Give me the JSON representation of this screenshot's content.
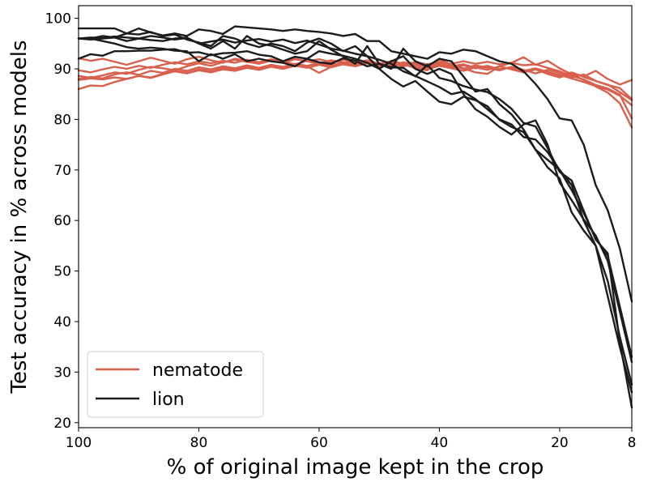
{
  "chart_data": {
    "type": "line",
    "xlabel": "% of original image kept in the crop",
    "ylabel": "Test accuracy in % across models",
    "xlim": [
      100,
      8
    ],
    "xaxis_reversed": true,
    "ylim": [
      19,
      102.5
    ],
    "x_ticks": [
      100,
      80,
      60,
      40,
      20,
      8
    ],
    "y_ticks": [
      20,
      30,
      40,
      50,
      60,
      70,
      80,
      90,
      100
    ],
    "grid": false,
    "legend_position": "lower-left",
    "legend": [
      {
        "label": "nematode",
        "color": "#d9604d"
      },
      {
        "label": "lion",
        "color": "#1c1c1c"
      }
    ],
    "x": [
      100,
      98,
      96,
      94,
      92,
      90,
      88,
      86,
      84,
      82,
      80,
      78,
      76,
      74,
      72,
      70,
      68,
      66,
      64,
      62,
      60,
      58,
      56,
      54,
      52,
      50,
      48,
      46,
      44,
      42,
      40,
      38,
      36,
      34,
      32,
      30,
      28,
      26,
      24,
      22,
      20,
      18,
      16,
      14,
      12,
      10,
      8
    ],
    "series": [
      {
        "group": "nematode",
        "color": "#d9604d",
        "values": [
          92.1,
          91.6,
          92.0,
          91.4,
          90.8,
          91.5,
          92.2,
          91.6,
          91.0,
          91.9,
          92.4,
          91.7,
          91.2,
          92.0,
          91.6,
          91.1,
          91.8,
          91.4,
          90.9,
          91.6,
          91.2,
          90.7,
          91.3,
          90.9,
          91.5,
          90.8,
          90.3,
          91.0,
          90.5,
          89.9,
          90.6,
          90.1,
          89.6,
          90.3,
          89.8,
          90.5,
          89.9,
          89.3,
          89.9,
          89.2,
          88.6,
          89.3,
          88.4,
          87.6,
          86.9,
          85.4,
          83.8
        ]
      },
      {
        "group": "nematode",
        "color": "#d9604d",
        "values": [
          88.0,
          88.4,
          88.1,
          88.9,
          89.3,
          88.8,
          89.6,
          89.2,
          90.0,
          89.6,
          90.3,
          89.9,
          90.5,
          90.1,
          90.7,
          90.2,
          90.8,
          90.4,
          91.0,
          90.6,
          91.1,
          90.7,
          91.3,
          90.8,
          91.2,
          90.6,
          91.1,
          90.5,
          91.0,
          90.4,
          90.8,
          90.2,
          90.7,
          90.1,
          90.5,
          89.9,
          90.3,
          89.6,
          90.1,
          89.4,
          88.8,
          88.1,
          87.4,
          86.6,
          85.9,
          84.7,
          82.8
        ]
      },
      {
        "group": "nematode",
        "color": "#d9604d",
        "values": [
          86.0,
          86.7,
          86.6,
          87.4,
          88.0,
          88.6,
          88.3,
          89.0,
          89.6,
          89.2,
          89.9,
          89.5,
          90.2,
          89.8,
          90.4,
          90.0,
          90.6,
          90.2,
          90.9,
          90.5,
          89.2,
          90.4,
          91.0,
          91.9,
          91.3,
          90.4,
          91.6,
          91.0,
          90.1,
          89.7,
          91.9,
          90.8,
          90.1,
          89.3,
          89.0,
          90.5,
          91.2,
          92.3,
          90.8,
          91.6,
          90.1,
          88.9,
          87.8,
          86.5,
          85.3,
          83.2,
          78.4
        ]
      },
      {
        "group": "nematode",
        "color": "#d9604d",
        "values": [
          88.6,
          88.2,
          88.7,
          89.3,
          89.0,
          89.8,
          90.4,
          90.1,
          89.7,
          90.5,
          91.1,
          90.6,
          91.3,
          91.8,
          91.4,
          91.0,
          91.6,
          91.2,
          91.9,
          91.5,
          91.0,
          91.7,
          91.3,
          90.8,
          91.5,
          91.1,
          90.6,
          91.3,
          90.9,
          90.3,
          91.0,
          90.6,
          90.0,
          90.7,
          90.2,
          89.7,
          90.4,
          89.8,
          89.1,
          89.8,
          89.2,
          88.3,
          88.9,
          87.6,
          86.8,
          86.2,
          84.0
        ]
      },
      {
        "group": "nematode",
        "color": "#d9604d",
        "values": [
          87.8,
          88.1,
          87.9,
          88.3,
          88.0,
          88.6,
          88.2,
          88.9,
          89.5,
          89.1,
          89.7,
          89.3,
          89.9,
          89.6,
          90.2,
          89.8,
          90.4,
          90.0,
          90.6,
          90.2,
          90.8,
          90.3,
          90.9,
          90.5,
          91.1,
          90.6,
          91.2,
          90.8,
          91.3,
          90.9,
          91.4,
          91.0,
          91.5,
          91.0,
          91.4,
          90.9,
          91.2,
          90.7,
          90.9,
          90.2,
          89.5,
          88.6,
          87.9,
          86.8,
          86.1,
          84.9,
          80.2
        ]
      },
      {
        "group": "nematode",
        "color": "#d9604d",
        "values": [
          89.7,
          89.3,
          89.9,
          90.4,
          90.0,
          90.6,
          90.2,
          90.8,
          91.3,
          90.9,
          91.5,
          91.1,
          91.6,
          91.2,
          91.8,
          91.3,
          91.9,
          91.4,
          92.0,
          91.5,
          91.9,
          91.3,
          91.8,
          91.2,
          91.7,
          91.0,
          91.5,
          90.9,
          91.3,
          90.7,
          91.1,
          90.5,
          90.9,
          90.2,
          90.6,
          89.9,
          90.3,
          89.5,
          89.9,
          89.0,
          88.3,
          89.1,
          88.5,
          89.6,
          88.0,
          86.9,
          87.8
        ]
      },
      {
        "group": "lion",
        "color": "#1c1c1c",
        "values": [
          98.0,
          98.0,
          98.0,
          98.0,
          97.0,
          98.0,
          97.2,
          96.6,
          97.0,
          96.5,
          97.8,
          97.5,
          96.9,
          98.4,
          98.2,
          98.0,
          97.8,
          97.5,
          97.8,
          97.5,
          97.3,
          97.0,
          96.5,
          96.9,
          95.5,
          95.5,
          93.5,
          93.0,
          92.5,
          92.0,
          93.3,
          93.0,
          93.8,
          93.5,
          92.5,
          91.5,
          91.0,
          89.5,
          87.0,
          84.0,
          80.2,
          79.8,
          75.0,
          67.0,
          62.0,
          54.5,
          44.0
        ]
      },
      {
        "group": "lion",
        "color": "#1c1c1c",
        "values": [
          96.0,
          96.2,
          96.1,
          96.4,
          96.2,
          96.0,
          96.5,
          96.2,
          95.8,
          96.1,
          95.0,
          95.4,
          95.8,
          95.2,
          95.6,
          95.9,
          95.4,
          95.8,
          95.1,
          95.6,
          94.8,
          94.0,
          93.6,
          93.0,
          92.5,
          91.8,
          91.0,
          89.5,
          88.6,
          87.5,
          86.4,
          85.0,
          85.5,
          84.0,
          82.0,
          80.0,
          79.0,
          76.5,
          76.0,
          73.5,
          70.0,
          66.0,
          61.5,
          56.5,
          53.0,
          43.0,
          33.0
        ]
      },
      {
        "group": "lion",
        "color": "#1c1c1c",
        "values": [
          92.0,
          92.9,
          92.6,
          93.5,
          93.5,
          93.6,
          93.6,
          93.8,
          93.9,
          93.2,
          93.3,
          92.7,
          93.1,
          93.2,
          93.5,
          92.8,
          92.5,
          91.5,
          92.4,
          92.0,
          91.3,
          91.0,
          92.1,
          91.6,
          90.5,
          91.0,
          90.3,
          90.2,
          88.5,
          90.8,
          88.2,
          87.6,
          86.6,
          85.9,
          85.4,
          84.0,
          82.1,
          79.3,
          78.6,
          74.3,
          69.6,
          67.9,
          61.9,
          56.2,
          53.5,
          36.0,
          23.0
        ]
      },
      {
        "group": "lion",
        "color": "#1c1c1c",
        "values": [
          96.0,
          96.0,
          95.5,
          95.0,
          94.3,
          94.0,
          94.2,
          94.0,
          93.6,
          93.5,
          91.5,
          92.9,
          92.0,
          92.9,
          91.5,
          92.0,
          91.5,
          91.2,
          90.5,
          92.0,
          93.5,
          93.0,
          92.6,
          92.0,
          91.2,
          90.0,
          88.0,
          86.5,
          87.6,
          85.5,
          83.5,
          83.0,
          84.5,
          83.8,
          82.6,
          79.9,
          78.5,
          77.5,
          74.0,
          70.5,
          68.3,
          61.6,
          58.0,
          55.0,
          48.0,
          37.0,
          27.5
        ]
      },
      {
        "group": "lion",
        "color": "#1c1c1c",
        "values": [
          96.0,
          96.0,
          96.5,
          96.2,
          97.0,
          96.8,
          97.3,
          96.5,
          96.8,
          95.8,
          95.2,
          94.5,
          96.5,
          96.0,
          95.0,
          94.3,
          95.0,
          94.5,
          93.5,
          95.2,
          96.0,
          95.0,
          93.5,
          94.5,
          92.5,
          90.0,
          91.5,
          92.5,
          90.0,
          89.0,
          90.0,
          89.0,
          85.0,
          82.0,
          80.5,
          78.5,
          77.0,
          79.0,
          79.8,
          75.0,
          67.5,
          64.0,
          60.2,
          57.0,
          52.0,
          42.0,
          32.0
        ]
      },
      {
        "group": "lion",
        "color": "#1c1c1c",
        "values": [
          96.0,
          95.8,
          96.0,
          96.2,
          95.5,
          96.0,
          95.7,
          95.5,
          96.0,
          96.2,
          95.0,
          94.0,
          95.5,
          94.0,
          96.5,
          95.0,
          94.6,
          93.8,
          93.0,
          93.5,
          95.5,
          93.8,
          92.5,
          91.0,
          94.5,
          91.0,
          90.0,
          94.0,
          91.5,
          90.5,
          92.0,
          91.5,
          88.5,
          85.5,
          86.0,
          83.0,
          81.0,
          78.0,
          74.0,
          72.0,
          70.0,
          67.0,
          60.0,
          55.0,
          45.0,
          35.0,
          26.0
        ]
      }
    ]
  }
}
